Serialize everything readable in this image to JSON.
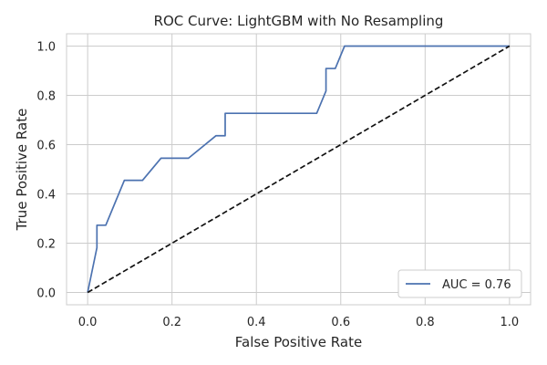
{
  "chart_data": {
    "type": "line",
    "title": "ROC Curve: LightGBM with No Resampling",
    "xlabel": "False Positive Rate",
    "ylabel": "True Positive Rate",
    "xlim": [
      -0.05,
      1.05
    ],
    "ylim": [
      -0.05,
      1.05
    ],
    "xticks": [
      0.0,
      0.2,
      0.4,
      0.6,
      0.8,
      1.0
    ],
    "yticks": [
      0.0,
      0.2,
      0.4,
      0.6,
      0.8,
      1.0
    ],
    "xtick_labels": [
      "0.0",
      "0.2",
      "0.4",
      "0.6",
      "0.8",
      "1.0"
    ],
    "ytick_labels": [
      "0.0",
      "0.2",
      "0.4",
      "0.6",
      "0.8",
      "1.0"
    ],
    "grid": true,
    "legend_position": "lower-right",
    "series": [
      {
        "name": "AUC = 0.76",
        "color": "#4c72b0",
        "style": "solid",
        "x": [
          0.0,
          0.022,
          0.022,
          0.043,
          0.087,
          0.13,
          0.174,
          0.239,
          0.304,
          0.326,
          0.326,
          0.543,
          0.565,
          0.565,
          0.587,
          0.609,
          1.0
        ],
        "y": [
          0.0,
          0.182,
          0.273,
          0.273,
          0.455,
          0.455,
          0.545,
          0.545,
          0.636,
          0.636,
          0.727,
          0.727,
          0.818,
          0.909,
          0.909,
          1.0,
          1.0
        ]
      },
      {
        "name": "",
        "color": "#111111",
        "style": "dashed",
        "x": [
          0.0,
          1.0
        ],
        "y": [
          0.0,
          1.0
        ]
      }
    ]
  }
}
